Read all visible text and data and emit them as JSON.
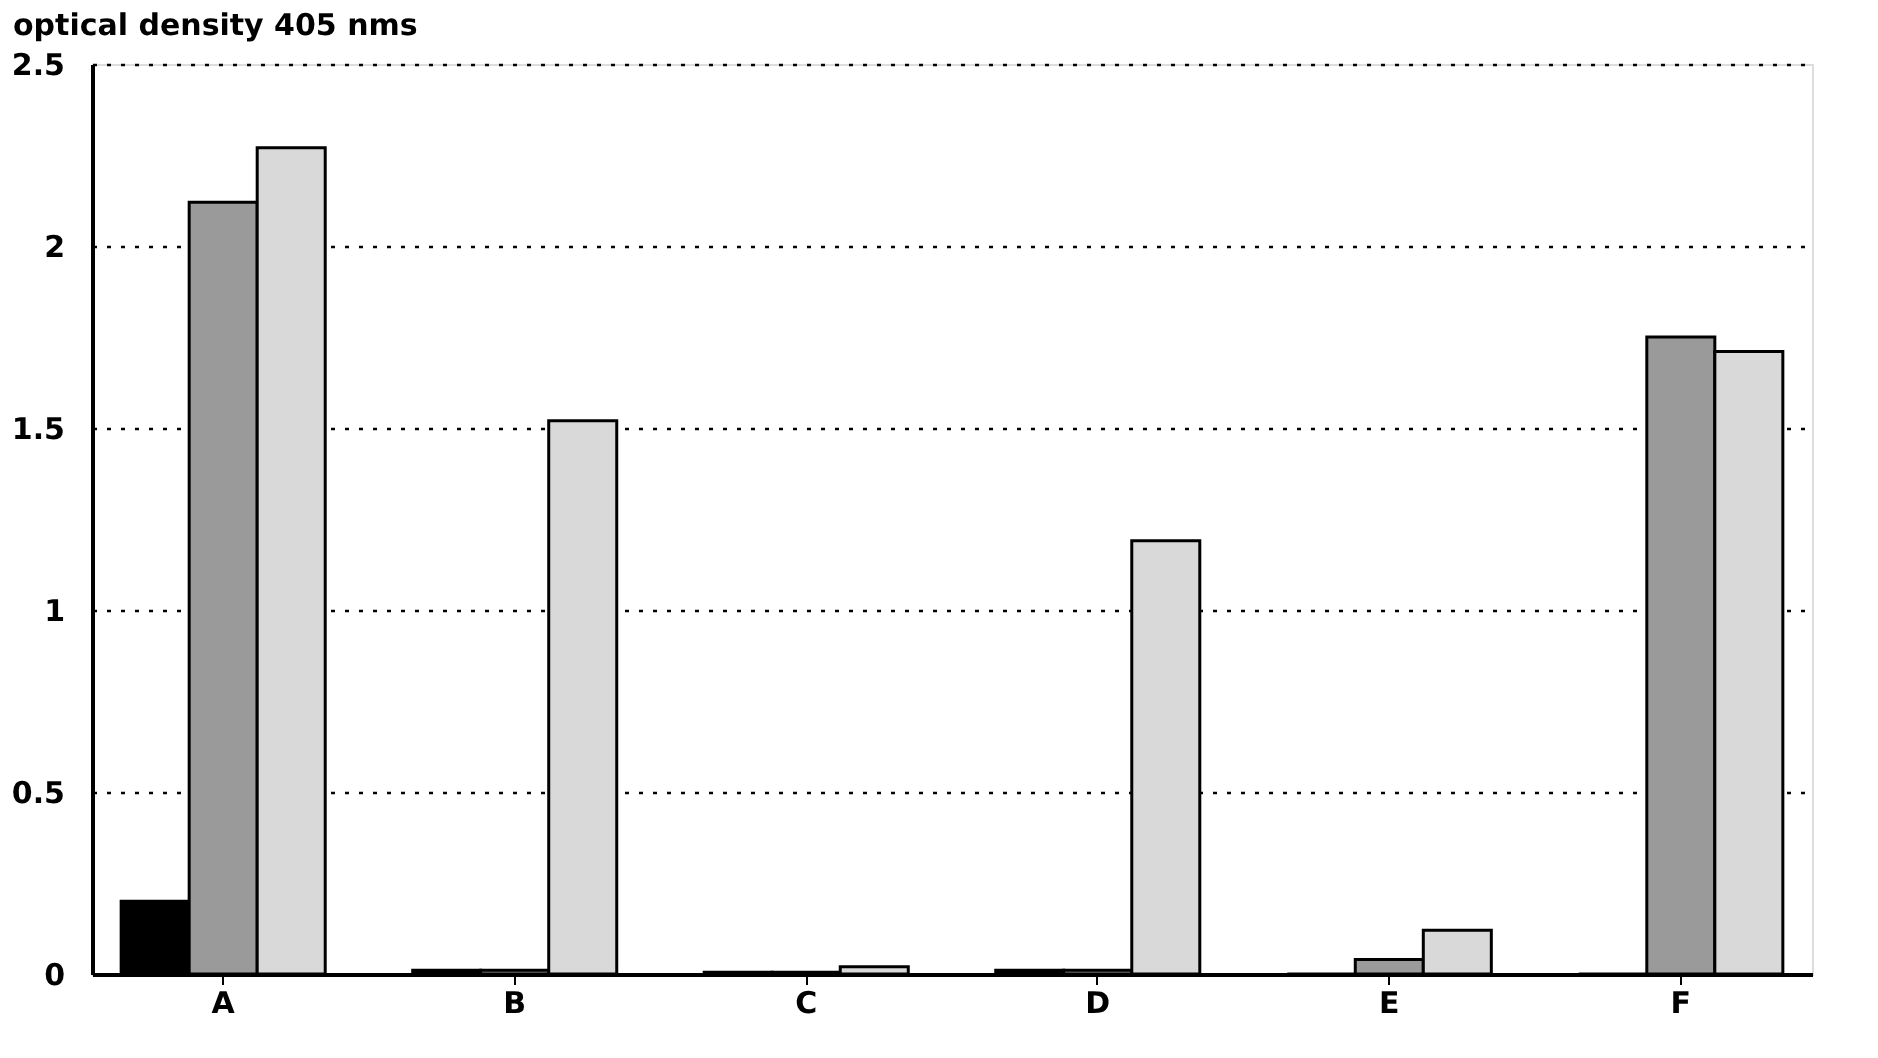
{
  "chart_data": {
    "type": "bar",
    "ylabel": "optical density 405 nms",
    "categories": [
      "A",
      "B",
      "C",
      "D",
      "E",
      "F"
    ],
    "series": [
      {
        "color": "#000000",
        "values": [
          0.2,
          0.01,
          0.005,
          0.01,
          0,
          0
        ]
      },
      {
        "color": "#9a9a9a",
        "values": [
          2.12,
          0.01,
          0.005,
          0.01,
          0.04,
          1.75
        ]
      },
      {
        "color": "#d9d9d9",
        "values": [
          2.27,
          1.52,
          0.02,
          1.19,
          0.12,
          1.71
        ]
      }
    ],
    "ylim": [
      0,
      2.5
    ],
    "yticks": [
      0,
      0.5,
      1,
      1.5,
      2,
      2.5
    ],
    "grid": "y",
    "legend": false
  }
}
